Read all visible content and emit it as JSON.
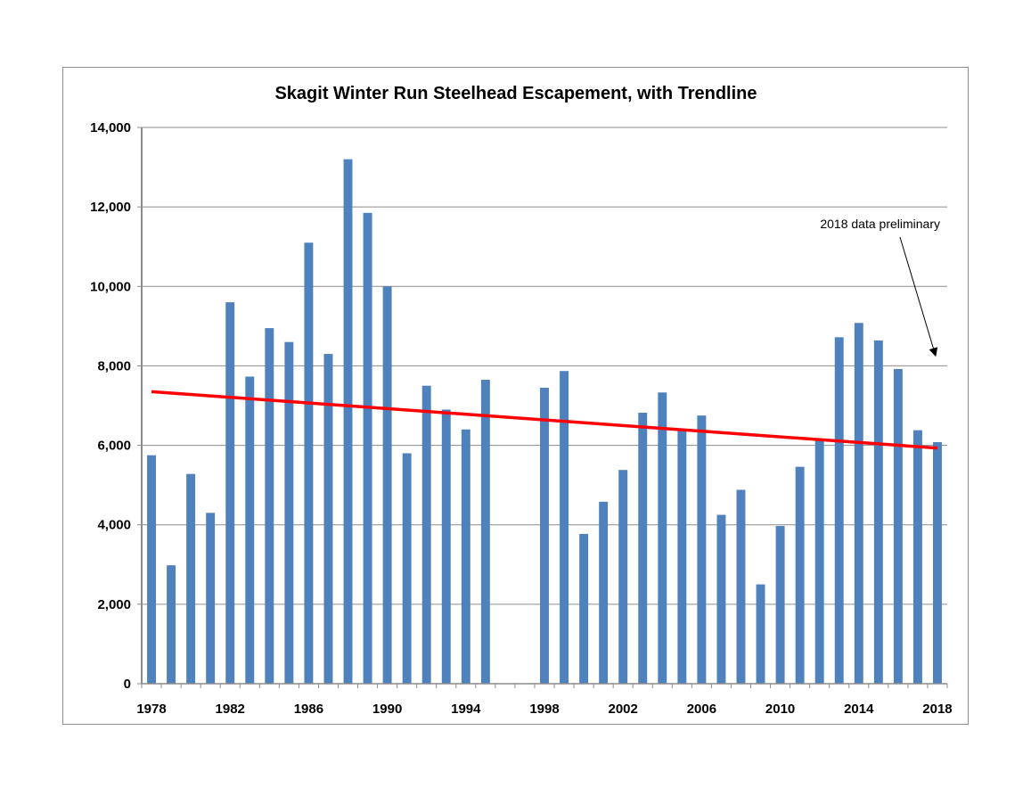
{
  "chart_data": {
    "type": "bar",
    "title": "Skagit Winter Run Steelhead Escapement, with Trendline",
    "x": [
      1978,
      1979,
      1980,
      1981,
      1982,
      1983,
      1984,
      1985,
      1986,
      1987,
      1988,
      1989,
      1990,
      1991,
      1992,
      1993,
      1994,
      1995,
      1996,
      1997,
      1998,
      1999,
      2000,
      2001,
      2002,
      2003,
      2004,
      2005,
      2006,
      2007,
      2008,
      2009,
      2010,
      2011,
      2012,
      2013,
      2014,
      2015,
      2016,
      2017,
      2018
    ],
    "values": [
      5750,
      2980,
      5280,
      4300,
      9600,
      7730,
      8950,
      8600,
      11100,
      8300,
      13200,
      11850,
      10000,
      5800,
      7500,
      6900,
      6400,
      7650,
      null,
      null,
      7450,
      7870,
      3770,
      4580,
      5380,
      6820,
      7330,
      6380,
      6750,
      4250,
      4880,
      2500,
      3970,
      5460,
      6130,
      8720,
      9080,
      8640,
      7920,
      6380,
      6080
    ],
    "bar_color": "#4f81bd",
    "ylim": [
      0,
      14000
    ],
    "yticks": [
      0,
      2000,
      4000,
      6000,
      8000,
      10000,
      12000,
      14000
    ],
    "ytick_labels": [
      "0",
      "2,000",
      "4,000",
      "6,000",
      "8,000",
      "10,000",
      "12,000",
      "14,000"
    ],
    "xticks": [
      1978,
      1982,
      1986,
      1990,
      1994,
      1998,
      2002,
      2006,
      2010,
      2014,
      2018
    ],
    "xtick_labels": [
      "1978",
      "1982",
      "1986",
      "1990",
      "1994",
      "1998",
      "2002",
      "2006",
      "2010",
      "2014",
      "2018"
    ],
    "grid": true,
    "xlabel": "",
    "ylabel": "",
    "trendline": {
      "color": "#ff0000",
      "start": [
        1978,
        7350
      ],
      "end": [
        2018,
        5930
      ]
    },
    "annotation": {
      "text": "2018 data preliminary",
      "arrow_target": [
        2018,
        8250
      ]
    }
  }
}
